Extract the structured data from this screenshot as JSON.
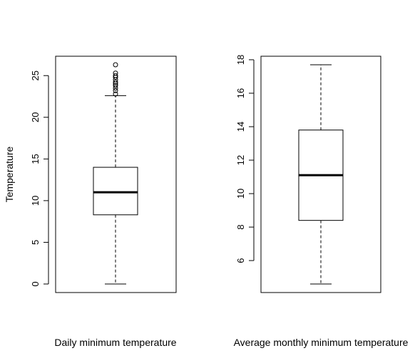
{
  "chart_data": [
    {
      "type": "box",
      "title": "",
      "xlabel": "Daily minimum temperature",
      "ylabel": "Temperature",
      "ylim": [
        0,
        26.3
      ],
      "yticks": [
        0,
        5,
        10,
        15,
        20,
        25
      ],
      "ytick_labels": [
        "0",
        "5",
        "10",
        "15",
        "20",
        "25"
      ],
      "box": {
        "min": 0,
        "q1": 8.3,
        "median": 11.0,
        "q3": 14.0,
        "max": 22.6
      },
      "outliers": [
        22.8,
        23.2,
        23.5,
        23.8,
        24.0,
        24.2,
        24.5,
        24.8,
        25.0,
        25.3,
        26.3
      ]
    },
    {
      "type": "box",
      "title": "",
      "xlabel": "Average monthly minimum temperature",
      "ylabel": "",
      "ylim": [
        4.6,
        17.7
      ],
      "yticks": [
        6,
        8,
        10,
        12,
        14,
        16,
        18
      ],
      "ytick_labels": [
        "6",
        "8",
        "10",
        "12",
        "14",
        "16",
        "18"
      ],
      "box": {
        "min": 4.6,
        "q1": 8.4,
        "median": 11.1,
        "q3": 13.8,
        "max": 17.7
      },
      "outliers": []
    }
  ]
}
